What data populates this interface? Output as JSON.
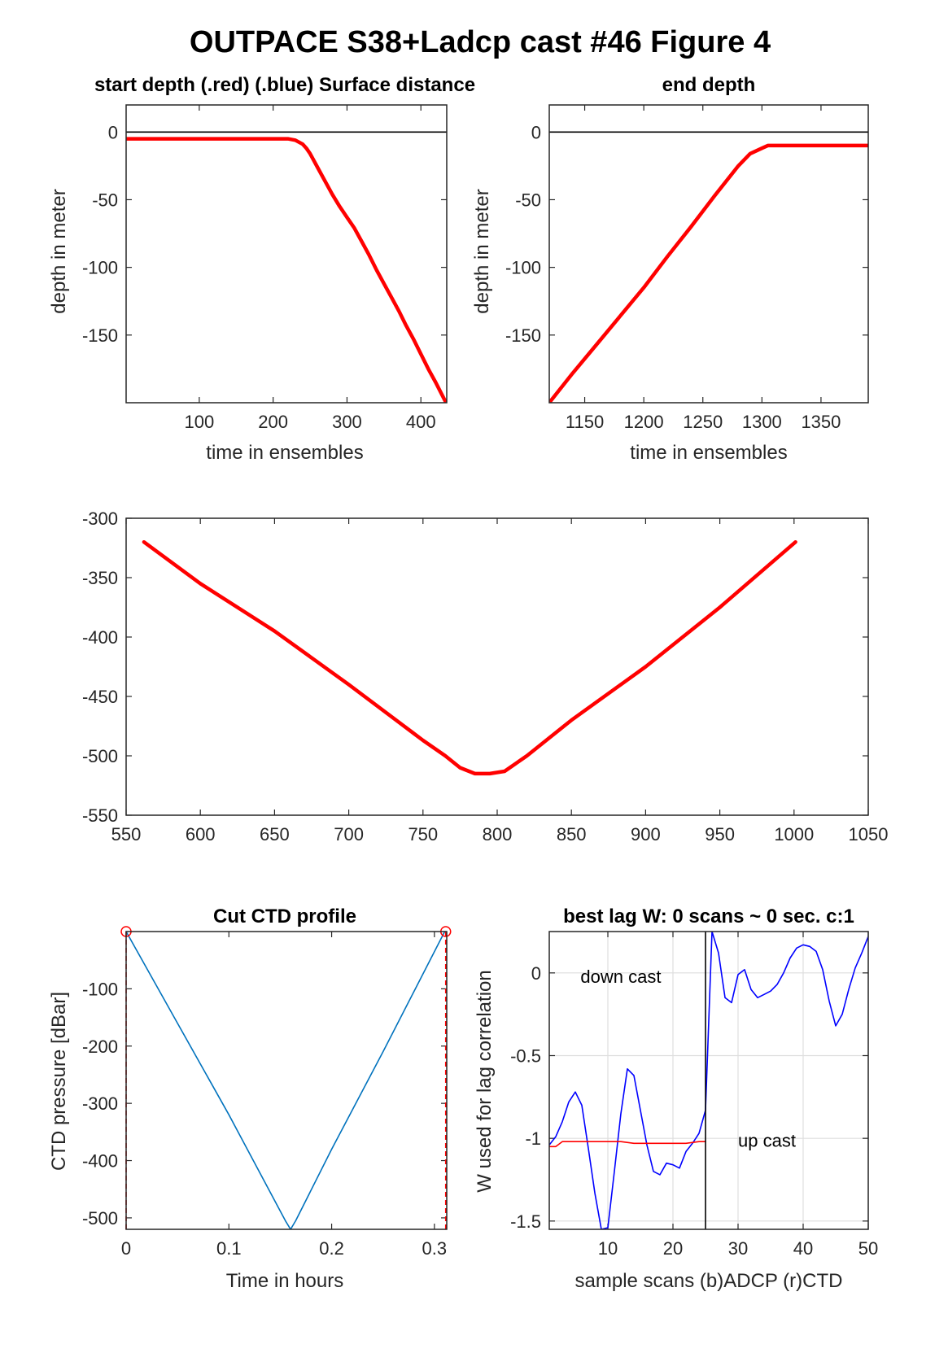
{
  "figure": {
    "title": "OUTPACE S38+Ladcp cast #46   Figure 4"
  },
  "chart_data": [
    {
      "id": "start_depth",
      "type": "line",
      "title": "start depth (.red) (.blue) Surface distance",
      "xlabel": "time in ensembles",
      "ylabel": "depth in meter",
      "xlim": [
        1,
        435
      ],
      "ylim": [
        -200,
        20
      ],
      "xticks": [
        100,
        200,
        300,
        400
      ],
      "yticks": [
        0,
        -50,
        -100,
        -150
      ],
      "hline": 0,
      "grid": false,
      "series": [
        {
          "color": "#ff0000",
          "x": [
            1,
            50,
            100,
            150,
            200,
            220,
            230,
            240,
            245,
            250,
            260,
            270,
            280,
            290,
            300,
            310,
            320,
            330,
            340,
            350,
            360,
            370,
            380,
            390,
            400,
            410,
            420,
            435
          ],
          "y": [
            -5,
            -5,
            -5,
            -5,
            -5,
            -5,
            -6,
            -9,
            -12,
            -16,
            -26,
            -36,
            -46,
            -55,
            -63,
            -71,
            -81,
            -91,
            -102,
            -112,
            -122,
            -132,
            -143,
            -153,
            -164,
            -175,
            -185,
            -201
          ]
        }
      ]
    },
    {
      "id": "end_depth",
      "type": "line",
      "title": "end depth",
      "xlabel": "time in ensembles",
      "ylabel": "depth in meter",
      "xlim": [
        1120,
        1390
      ],
      "ylim": [
        -200,
        20
      ],
      "xticks": [
        1150,
        1200,
        1250,
        1300,
        1350
      ],
      "yticks": [
        0,
        -50,
        -100,
        -150
      ],
      "hline": 0,
      "grid": false,
      "series": [
        {
          "color": "#ff0000",
          "x": [
            1120,
            1140,
            1160,
            1180,
            1200,
            1220,
            1240,
            1260,
            1280,
            1290,
            1300,
            1305,
            1310,
            1315,
            1320,
            1340,
            1360,
            1390
          ],
          "y": [
            -200,
            -178,
            -157,
            -136,
            -115,
            -92,
            -70,
            -47,
            -25,
            -16,
            -12,
            -10,
            -10,
            -10,
            -10,
            -10,
            -10,
            -10
          ]
        }
      ]
    },
    {
      "id": "bottom_segment",
      "type": "line",
      "title": "",
      "xlabel": "",
      "ylabel": "",
      "xlim": [
        550,
        1050
      ],
      "ylim": [
        -550,
        -300
      ],
      "xticks": [
        550,
        600,
        650,
        700,
        750,
        800,
        850,
        900,
        950,
        1000,
        1050
      ],
      "yticks": [
        -300,
        -350,
        -400,
        -450,
        -500,
        -550
      ],
      "grid": false,
      "series": [
        {
          "color": "#ff0000",
          "x": [
            562,
            600,
            650,
            700,
            750,
            765,
            775,
            785,
            795,
            805,
            820,
            850,
            900,
            950,
            1001
          ],
          "y": [
            -320,
            -355,
            -395,
            -440,
            -487,
            -500,
            -510,
            -515,
            -515,
            -513,
            -500,
            -470,
            -425,
            -375,
            -320
          ]
        }
      ]
    },
    {
      "id": "cut_ctd_profile",
      "type": "line",
      "title": "Cut CTD profile",
      "xlabel": "Time in hours",
      "ylabel": "CTD pressure [dBar]",
      "xlim": [
        0,
        0.312
      ],
      "ylim": [
        -520,
        0
      ],
      "xticks": [
        0,
        0.1,
        0.2,
        0.3
      ],
      "xtick_labels": [
        "0",
        "0.1",
        "0.2",
        "0.3"
      ],
      "yticks": [
        -100,
        -200,
        -300,
        -400,
        -500
      ],
      "grid": false,
      "series": [
        {
          "color": "#0072bd",
          "x": [
            0,
            0.05,
            0.1,
            0.155,
            0.16,
            0.165,
            0.2,
            0.25,
            0.31
          ],
          "y": [
            0,
            -160,
            -320,
            -505,
            -520,
            -505,
            -380,
            -210,
            0
          ]
        }
      ],
      "markers": [
        {
          "color": "#ff0000",
          "x": 0,
          "y": 0
        },
        {
          "color": "#ff0000",
          "x": 0.311,
          "y": 0
        }
      ],
      "vlines": [
        {
          "color": "#ff0000",
          "x": 0
        },
        {
          "color": "#ff0000",
          "x": 0.311
        }
      ]
    },
    {
      "id": "best_lag",
      "type": "line",
      "title": "best lag W: 0 scans ~ 0 sec.  c:1",
      "xlabel": "sample scans (b)ADCP (r)CTD",
      "ylabel": "W used for lag correlation",
      "xlim": [
        1,
        50
      ],
      "ylim": [
        -1.55,
        0.25
      ],
      "xticks": [
        10,
        20,
        30,
        40,
        50
      ],
      "yticks": [
        0,
        -0.5,
        -1,
        -1.5
      ],
      "yticklabels": [
        "0",
        "-0.5",
        "-1",
        "-1.5"
      ],
      "grid": true,
      "vline": 25,
      "annotations": [
        {
          "text": "down cast",
          "x": 5.8,
          "y": -0.06
        },
        {
          "text": "up cast",
          "x": 30,
          "y": -1.05
        }
      ],
      "series": [
        {
          "color": "#0000ff",
          "x": [
            1,
            2,
            3,
            4,
            5,
            6,
            7,
            8,
            9,
            10,
            11,
            12,
            13,
            14,
            15,
            16,
            17,
            18,
            19,
            20,
            21,
            22,
            23,
            24,
            25,
            26,
            27,
            28,
            29,
            30,
            31,
            32,
            33,
            34,
            35,
            36,
            37,
            38,
            39,
            40,
            41,
            42,
            43,
            44,
            45,
            46,
            47,
            48,
            49,
            50
          ],
          "y": [
            -1.04,
            -0.99,
            -0.9,
            -0.78,
            -0.72,
            -0.8,
            -1.06,
            -1.33,
            -1.55,
            -1.54,
            -1.2,
            -0.85,
            -0.58,
            -0.62,
            -0.83,
            -1.04,
            -1.2,
            -1.22,
            -1.15,
            -1.16,
            -1.18,
            -1.08,
            -1.03,
            -0.97,
            -0.83,
            0.25,
            0.12,
            -0.15,
            -0.18,
            -0.01,
            0.02,
            -0.1,
            -0.15,
            -0.13,
            -0.11,
            -0.07,
            0.0,
            0.09,
            0.15,
            0.17,
            0.16,
            0.13,
            0.02,
            -0.17,
            -0.32,
            -0.25,
            -0.1,
            0.03,
            0.12,
            0.22
          ]
        },
        {
          "color": "#ff0000",
          "x": [
            1,
            2,
            3,
            4,
            6,
            8,
            10,
            12,
            14,
            16,
            18,
            20,
            22,
            24,
            25
          ],
          "y": [
            -1.05,
            -1.05,
            -1.02,
            -1.02,
            -1.02,
            -1.02,
            -1.02,
            -1.02,
            -1.03,
            -1.03,
            -1.03,
            -1.03,
            -1.03,
            -1.02,
            -1.02
          ]
        }
      ]
    }
  ]
}
